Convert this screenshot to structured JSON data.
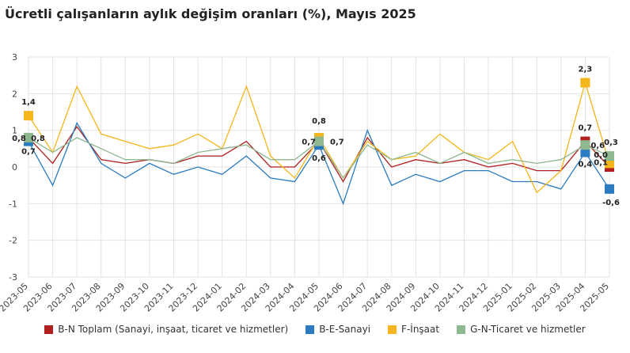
{
  "chart_data": {
    "type": "line",
    "title": "Ücretli çalışanların aylık değişim oranları (%), Mayıs 2025",
    "xlabel": "",
    "ylabel": "",
    "ylim": [
      -3,
      3
    ],
    "yticks": [
      -3,
      -2,
      -1,
      0,
      1,
      2,
      3
    ],
    "grid": true,
    "legend": "bottom",
    "categories": [
      "2023-05",
      "2023-06",
      "2023-07",
      "2023-08",
      "2023-09",
      "2023-10",
      "2023-11",
      "2023-12",
      "2024-01",
      "2024-02",
      "2024-03",
      "2024-04",
      "2024-05",
      "2024-06",
      "2024-07",
      "2024-08",
      "2024-09",
      "2024-10",
      "2024-11",
      "2024-12",
      "2025-01",
      "2025-02",
      "2025-03",
      "2025-04",
      "2025-05"
    ],
    "series": [
      {
        "name": "B-N Toplam (Sanayi, inşaat, ticaret ve hizmetler)",
        "color": "#b01e1e",
        "values": [
          0.8,
          0.1,
          1.1,
          0.2,
          0.1,
          0.2,
          0.1,
          0.3,
          0.3,
          0.7,
          0.0,
          0.0,
          0.7,
          -0.4,
          0.8,
          0.0,
          0.2,
          0.1,
          0.2,
          0.0,
          0.1,
          -0.1,
          -0.1,
          0.7,
          0.0
        ],
        "labels": {
          "0": "0,8",
          "12": "0,7",
          "23": "0,7",
          "24": "0,0"
        }
      },
      {
        "name": "B-E-Sanayi",
        "color": "#2b7bc0",
        "values": [
          0.7,
          -0.5,
          1.2,
          0.1,
          -0.3,
          0.1,
          -0.2,
          0.0,
          -0.2,
          0.3,
          -0.3,
          -0.4,
          0.6,
          -1.0,
          1.0,
          -0.5,
          -0.2,
          -0.4,
          -0.1,
          -0.1,
          -0.4,
          -0.4,
          -0.6,
          0.4,
          -0.6
        ],
        "labels": {
          "0": "0,7",
          "12": "0,6",
          "23": "0,4",
          "24": "-0,6"
        }
      },
      {
        "name": "F-İnşaat",
        "color": "#f5b61c",
        "values": [
          1.4,
          0.4,
          2.2,
          0.9,
          0.7,
          0.5,
          0.6,
          0.9,
          0.5,
          2.2,
          0.3,
          -0.3,
          0.8,
          -0.3,
          0.7,
          0.2,
          0.3,
          0.9,
          0.4,
          0.2,
          0.7,
          -0.7,
          -0.1,
          2.3,
          0.1
        ],
        "labels": {
          "0": "1,4",
          "12": "0,8",
          "23": "2,3",
          "24": "0,1"
        }
      },
      {
        "name": "G-N-Ticaret ve hizmetler",
        "color": "#8db890",
        "values": [
          0.8,
          0.4,
          0.8,
          0.5,
          0.2,
          0.2,
          0.1,
          0.4,
          0.5,
          0.6,
          0.2,
          0.2,
          0.7,
          -0.3,
          0.6,
          0.2,
          0.4,
          0.1,
          0.4,
          0.1,
          0.2,
          0.1,
          0.2,
          0.6,
          0.3
        ],
        "labels": {
          "0": "0,8",
          "12": "0,7",
          "23": "0,6",
          "24": "0,3"
        }
      }
    ]
  }
}
